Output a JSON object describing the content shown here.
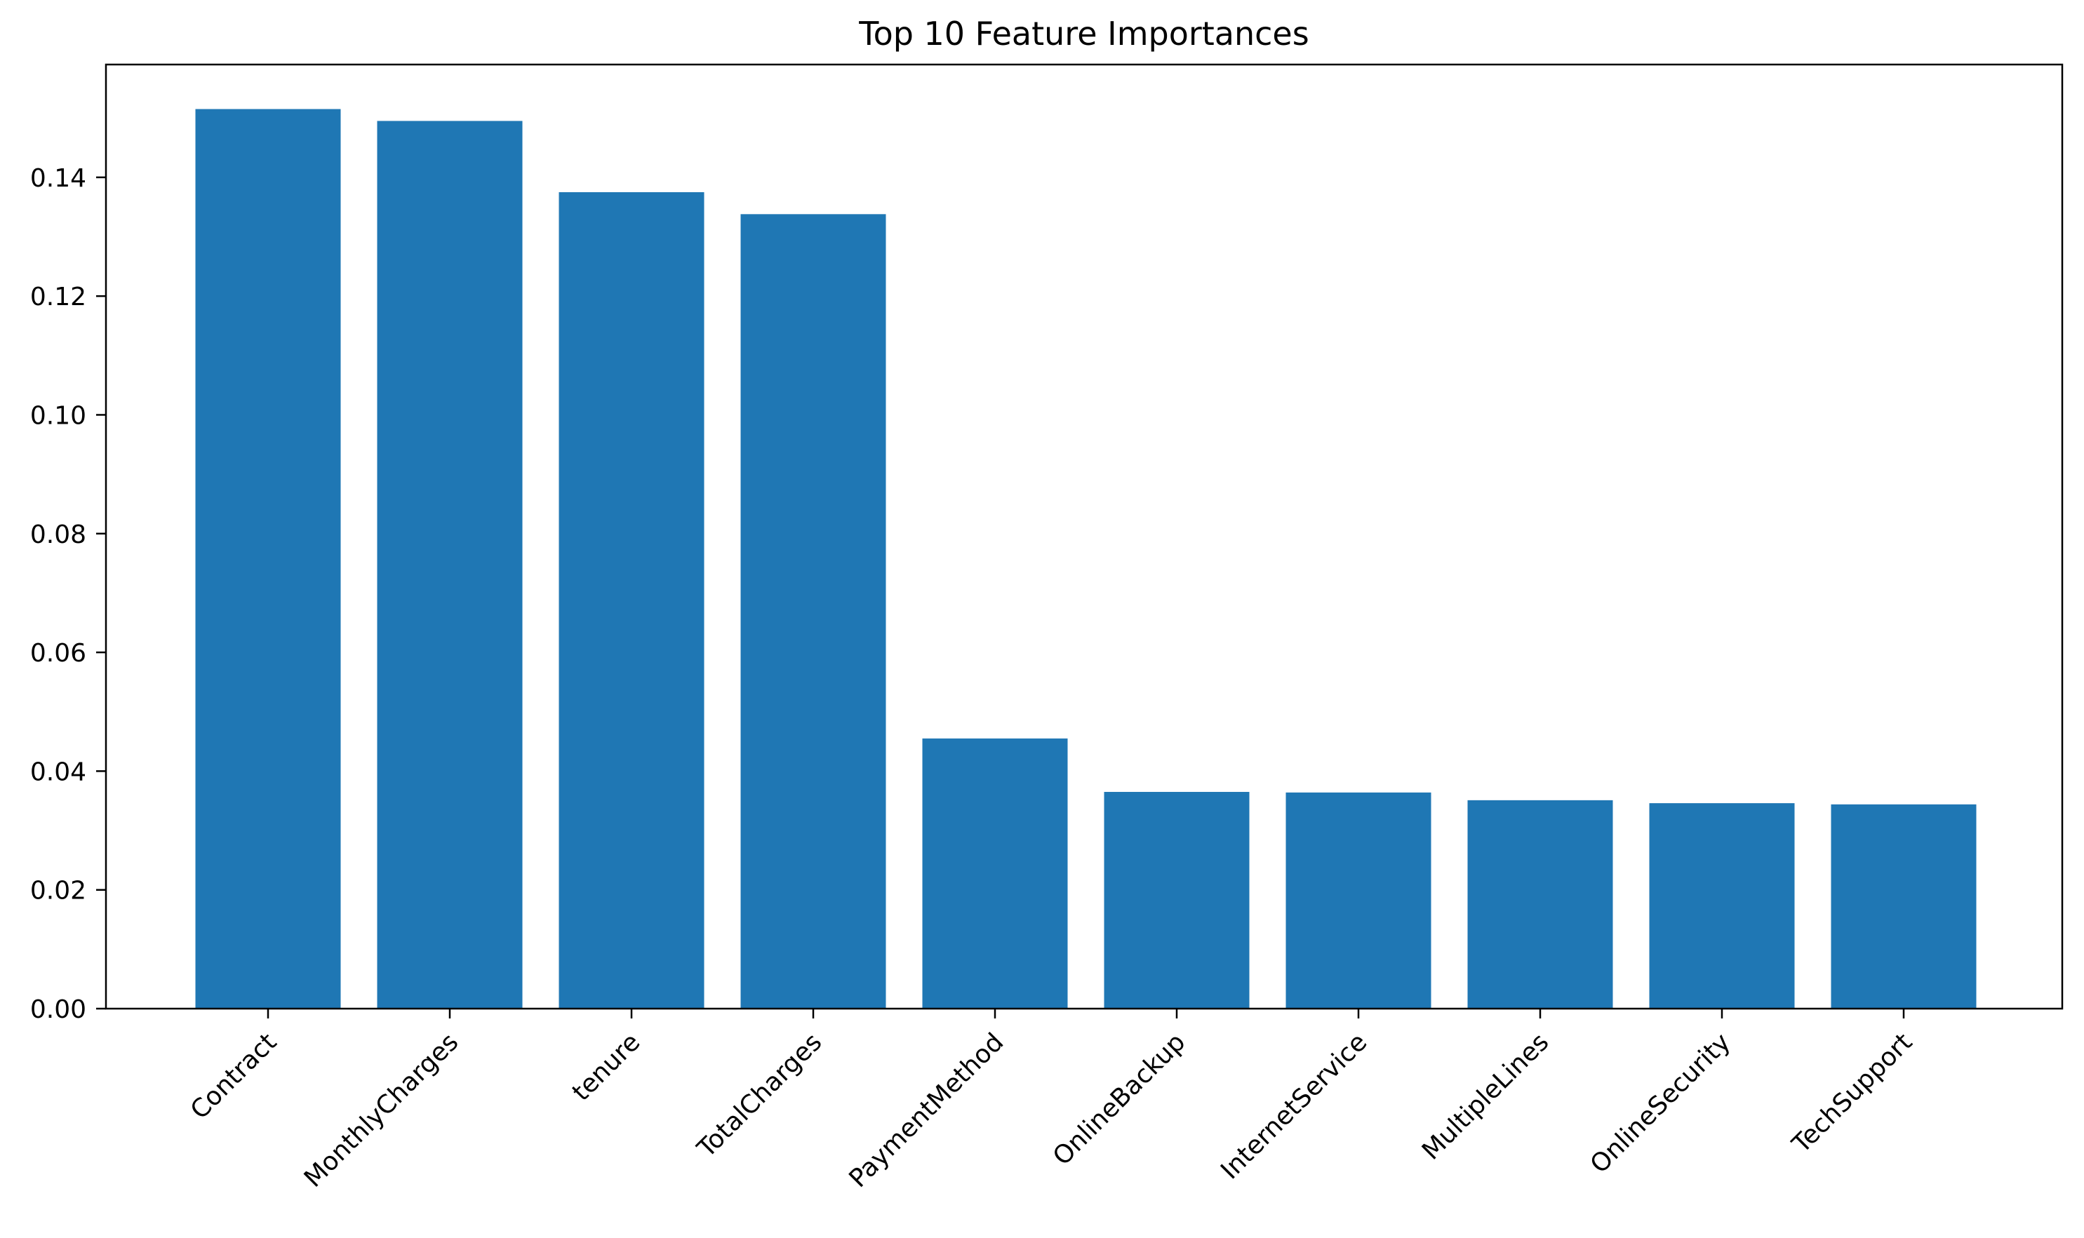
{
  "chart_data": {
    "type": "bar",
    "title": "Top 10 Feature Importances",
    "xlabel": "",
    "ylabel": "",
    "categories": [
      "Contract",
      "MonthlyCharges",
      "tenure",
      "TotalCharges",
      "PaymentMethod",
      "OnlineBackup",
      "InternetService",
      "MultipleLines",
      "OnlineSecurity",
      "TechSupport"
    ],
    "values": [
      0.1515,
      0.1495,
      0.1375,
      0.1338,
      0.0455,
      0.0365,
      0.0364,
      0.0351,
      0.0346,
      0.0344
    ],
    "ylim": [
      0,
      0.159
    ],
    "yticks": [
      "0.00",
      "0.02",
      "0.04",
      "0.06",
      "0.08",
      "0.10",
      "0.12",
      "0.14"
    ],
    "bar_color": "#1f77b4",
    "grid": false,
    "legend": "none"
  }
}
